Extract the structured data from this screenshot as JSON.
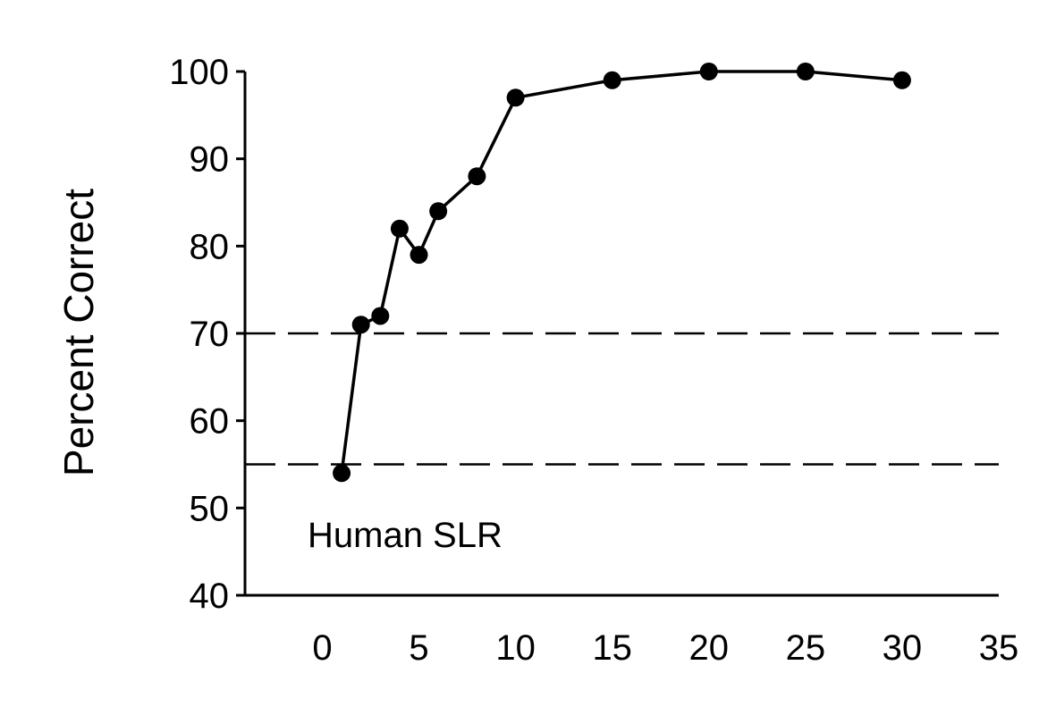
{
  "chart_data": {
    "type": "line",
    "title": "",
    "xlabel": "",
    "ylabel": "Percent Correct",
    "annotation": "Human SLR",
    "xlim": [
      -4,
      35
    ],
    "ylim": [
      40,
      100
    ],
    "x_ticks": [
      0,
      5,
      10,
      15,
      20,
      25,
      30,
      35
    ],
    "y_ticks": [
      40,
      50,
      60,
      70,
      80,
      90,
      100
    ],
    "reference_lines": [
      55,
      70
    ],
    "grid": false,
    "legend": "none",
    "series": [
      {
        "x": [
          1,
          2,
          3,
          4,
          5,
          6,
          8,
          10,
          15,
          20,
          25,
          30
        ],
        "y": [
          54,
          71,
          72,
          82,
          79,
          84,
          88,
          97,
          99,
          100,
          100,
          99
        ],
        "color": "#000000",
        "marker": "filled-circle"
      }
    ]
  }
}
